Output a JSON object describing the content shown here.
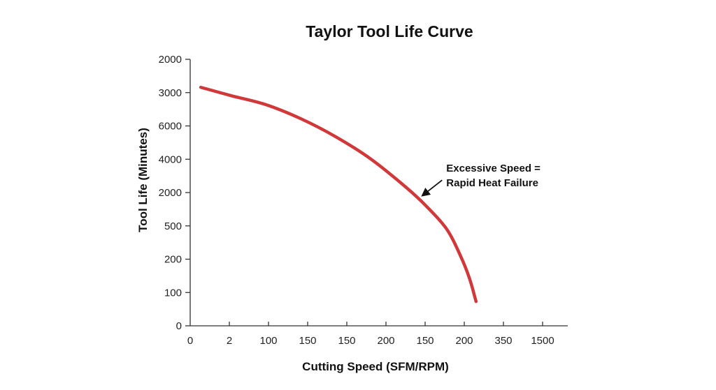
{
  "chart_data": {
    "type": "line",
    "title": "Taylor Tool Life Curve",
    "xlabel": "Cutting Speed (SFM/RPM)",
    "ylabel": "Tool Life (Minutes)",
    "x_tick_labels": [
      "0",
      "2",
      "100",
      "150",
      "150",
      "200",
      "150",
      "200",
      "350",
      "1500"
    ],
    "y_tick_labels": [
      "0",
      "100",
      "200",
      "500",
      "2000",
      "4000",
      "6000",
      "3000",
      "2000"
    ],
    "axis_units_note": "Tick labels are evenly spaced categorical positions; series coordinates are given as tick-index positions (x: 0-9 along x ticks, y: 0-8 along y ticks from bottom).",
    "xlim_index": [
      0,
      9.6
    ],
    "ylim_index": [
      0,
      8
    ],
    "grid": false,
    "legend": "none",
    "series": [
      {
        "name": "Tool life curve",
        "color": "#d0383a",
        "points": [
          [
            0.27,
            7.16
          ],
          [
            1.04,
            6.91
          ],
          [
            1.93,
            6.64
          ],
          [
            2.82,
            6.22
          ],
          [
            3.71,
            5.68
          ],
          [
            4.61,
            5.01
          ],
          [
            5.5,
            4.17
          ],
          [
            6.04,
            3.58
          ],
          [
            6.57,
            2.87
          ],
          [
            6.93,
            2.03
          ],
          [
            7.14,
            1.4
          ],
          [
            7.3,
            0.73
          ]
        ]
      }
    ],
    "annotations": [
      {
        "lines": [
          "Excessive Speed =",
          "Rapid Heat Failure"
        ],
        "arrow_target_index": [
          5.88,
          3.87
        ],
        "arrow_color": "#111111"
      }
    ]
  }
}
